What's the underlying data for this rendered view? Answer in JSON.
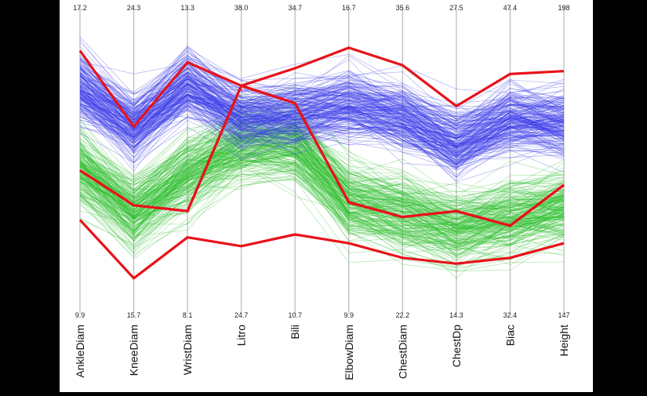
{
  "chart_data": {
    "type": "parallel_coordinates",
    "title": "",
    "axes": [
      {
        "label": "AnkleDiam",
        "max": "17.2",
        "min": "9.9"
      },
      {
        "label": "KneeDiam",
        "max": "24.3",
        "min": "15.7"
      },
      {
        "label": "WristDiam",
        "max": "13.3",
        "min": "8.1"
      },
      {
        "label": "Litro",
        "max": "38.0",
        "min": "24.7"
      },
      {
        "label": "Bili",
        "max": "34.7",
        "min": "10.7"
      },
      {
        "label": "ElbowDiam",
        "max": "16.7",
        "min": "9.9"
      },
      {
        "label": "ChestDiam",
        "max": "35.6",
        "min": "22.2"
      },
      {
        "label": "ChestDp",
        "max": "27.5",
        "min": "14.3"
      },
      {
        "label": "Biac",
        "max": "47.4",
        "min": "32.4"
      },
      {
        "label": "Height",
        "max": "198",
        "min": "147"
      }
    ],
    "group_colors": {
      "group_a": "#3a3ae8",
      "group_b": "#2fbf2f",
      "highlight": "#e8121a"
    },
    "highlighted_lines": [
      {
        "values": [
          0.88,
          0.62,
          0.84,
          0.76,
          0.82,
          0.89,
          0.83,
          0.69,
          0.8,
          0.81
        ]
      },
      {
        "values": [
          0.47,
          0.35,
          0.33,
          0.76,
          0.7,
          0.36,
          0.31,
          0.33,
          0.28,
          0.42
        ]
      },
      {
        "values": [
          0.3,
          0.1,
          0.24,
          0.21,
          0.25,
          0.22,
          0.17,
          0.15,
          0.17,
          0.22
        ]
      },
      {
        "values": [
          0.47,
          0.35,
          0.33,
          0.76,
          0.7,
          0.36,
          0.31,
          0.33,
          0.28,
          0.42
        ]
      }
    ],
    "background_lines": {
      "group_a_profile": [
        0.76,
        0.63,
        0.77,
        0.66,
        0.67,
        0.7,
        0.66,
        0.57,
        0.65,
        0.64
      ],
      "group_b_profile": [
        0.48,
        0.33,
        0.46,
        0.56,
        0.56,
        0.37,
        0.33,
        0.27,
        0.31,
        0.35
      ]
    }
  }
}
